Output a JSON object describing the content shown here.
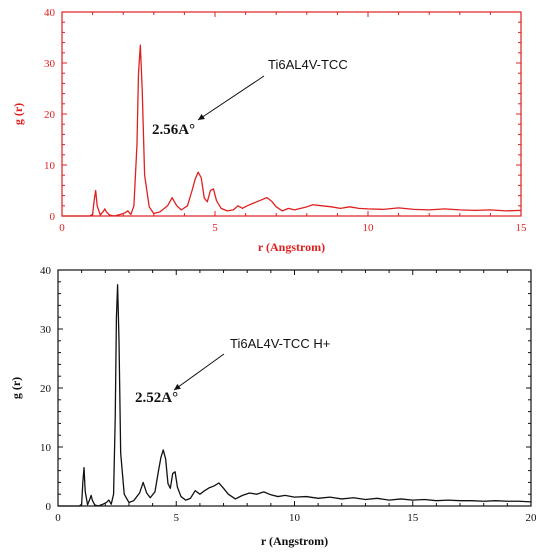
{
  "chart_data": [
    {
      "type": "line",
      "color": "#e02020",
      "xlabel": "r (Angstrom)",
      "ylabel": "g (r)",
      "xlim": [
        0,
        15
      ],
      "ylim": [
        0,
        40
      ],
      "xticks": [
        0,
        5,
        10,
        15
      ],
      "yticks": [
        0,
        10,
        20,
        30,
        40
      ],
      "annotation": "Ti6AL4V-TCC",
      "peak_label": "2.56A°",
      "grid": false,
      "series": [
        {
          "x": [
            0,
            0.9,
            1.0,
            1.05,
            1.1,
            1.15,
            1.25,
            1.35,
            1.4,
            1.45,
            1.55,
            1.7,
            1.9,
            2.05,
            2.15,
            2.25,
            2.35,
            2.45,
            2.5,
            2.56,
            2.62,
            2.7,
            2.85,
            3.0,
            3.2,
            3.45,
            3.6,
            3.75,
            3.9,
            4.1,
            4.25,
            4.35,
            4.45,
            4.55,
            4.65,
            4.75,
            4.85,
            4.95,
            5.05,
            5.2,
            5.4,
            5.6,
            5.75,
            5.9,
            6.05,
            6.25,
            6.45,
            6.7,
            6.85,
            7.0,
            7.2,
            7.4,
            7.6,
            7.8,
            8.0,
            8.2,
            8.5,
            8.8,
            9.1,
            9.4,
            9.7,
            10.0,
            10.5,
            11.0,
            11.5,
            12.0,
            12.5,
            13.0,
            13.5,
            14.0,
            14.5,
            15.0
          ],
          "y": [
            0,
            0,
            0.3,
            3.0,
            5.0,
            2.0,
            0.2,
            0.9,
            1.4,
            0.8,
            0.2,
            0,
            0.3,
            0.6,
            1.0,
            0.3,
            2.0,
            14.0,
            28.0,
            33.5,
            25.0,
            8.0,
            1.8,
            0.5,
            0.8,
            2.0,
            3.6,
            2.0,
            1.2,
            2.0,
            5.0,
            7.2,
            8.6,
            7.5,
            3.5,
            2.8,
            5.0,
            5.3,
            3.0,
            1.5,
            1.0,
            1.2,
            2.0,
            1.5,
            2.0,
            2.5,
            3.0,
            3.6,
            2.9,
            1.8,
            1.0,
            1.5,
            1.2,
            1.5,
            1.8,
            2.2,
            2.0,
            1.8,
            1.5,
            1.8,
            1.5,
            1.4,
            1.3,
            1.6,
            1.3,
            1.2,
            1.4,
            1.2,
            1.1,
            1.2,
            1.0,
            1.1
          ]
        }
      ]
    },
    {
      "type": "line",
      "color": "#111111",
      "xlabel": "r (Angstrom)",
      "ylabel": "g (r)",
      "xlim": [
        0,
        20
      ],
      "ylim": [
        0,
        40
      ],
      "xticks": [
        0,
        5,
        10,
        15,
        20
      ],
      "yticks": [
        0,
        10,
        20,
        30,
        40
      ],
      "annotation": "Ti6AL4V-TCC H+",
      "peak_label": "2.52A°",
      "grid": false,
      "series": [
        {
          "x": [
            0,
            0.9,
            1.0,
            1.05,
            1.1,
            1.15,
            1.25,
            1.35,
            1.4,
            1.45,
            1.55,
            1.7,
            1.9,
            2.05,
            2.15,
            2.25,
            2.35,
            2.42,
            2.47,
            2.52,
            2.58,
            2.65,
            2.8,
            3.0,
            3.2,
            3.45,
            3.6,
            3.75,
            3.9,
            4.1,
            4.25,
            4.35,
            4.45,
            4.55,
            4.65,
            4.75,
            4.85,
            4.95,
            5.05,
            5.2,
            5.4,
            5.6,
            5.8,
            6.0,
            6.2,
            6.4,
            6.6,
            6.8,
            7.0,
            7.2,
            7.5,
            7.8,
            8.1,
            8.4,
            8.7,
            9.0,
            9.3,
            9.6,
            10.0,
            10.5,
            11.0,
            11.5,
            12.0,
            12.5,
            13.0,
            13.5,
            14.0,
            14.5,
            15.0,
            15.5,
            16.0,
            16.5,
            17.0,
            17.5,
            18.0,
            18.5,
            19.0,
            19.5,
            20.0
          ],
          "y": [
            0,
            0,
            0.3,
            4.0,
            6.5,
            2.5,
            0.2,
            1.2,
            1.8,
            1.0,
            0.2,
            0,
            0.3,
            0.6,
            1.0,
            0.3,
            2.0,
            15.0,
            32.0,
            37.5,
            28.0,
            9.0,
            2.0,
            0.6,
            0.9,
            2.2,
            4.0,
            2.2,
            1.4,
            2.4,
            6.0,
            8.2,
            9.5,
            8.0,
            3.8,
            3.0,
            5.5,
            5.8,
            3.2,
            1.6,
            1.0,
            1.3,
            2.6,
            2.0,
            2.6,
            3.1,
            3.4,
            3.9,
            3.0,
            2.0,
            1.2,
            1.8,
            2.2,
            2.0,
            2.4,
            1.9,
            1.6,
            1.8,
            1.5,
            1.6,
            1.3,
            1.5,
            1.2,
            1.4,
            1.1,
            1.3,
            1.0,
            1.2,
            1.0,
            1.1,
            0.9,
            1.0,
            0.9,
            0.9,
            0.8,
            0.9,
            0.8,
            0.8,
            0.7
          ]
        }
      ]
    }
  ]
}
